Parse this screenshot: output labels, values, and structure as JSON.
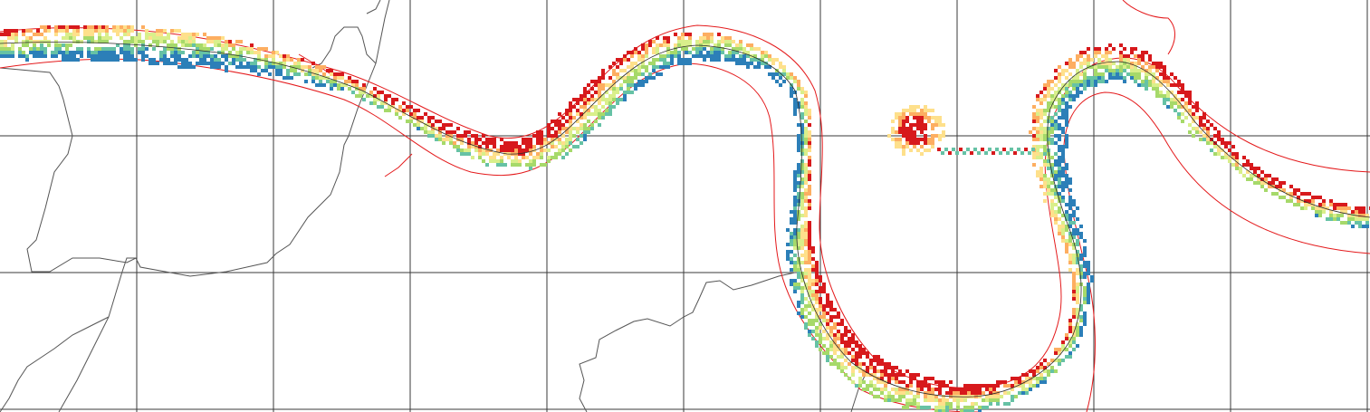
{
  "map": {
    "type": "river-heatmap-grid",
    "grid_lines": "on",
    "colors": {
      "background": "#ffffff",
      "grid": "#3a3a3a",
      "boundary": "#555555",
      "buffer_outline": "#e41a1c",
      "centerline": "#2b2b2b",
      "ramp": [
        "#d7191c",
        "#fdae61",
        "#fee08b",
        "#d9ef8b",
        "#a6d96a",
        "#66c2a5",
        "#2c7fb8"
      ]
    }
  }
}
